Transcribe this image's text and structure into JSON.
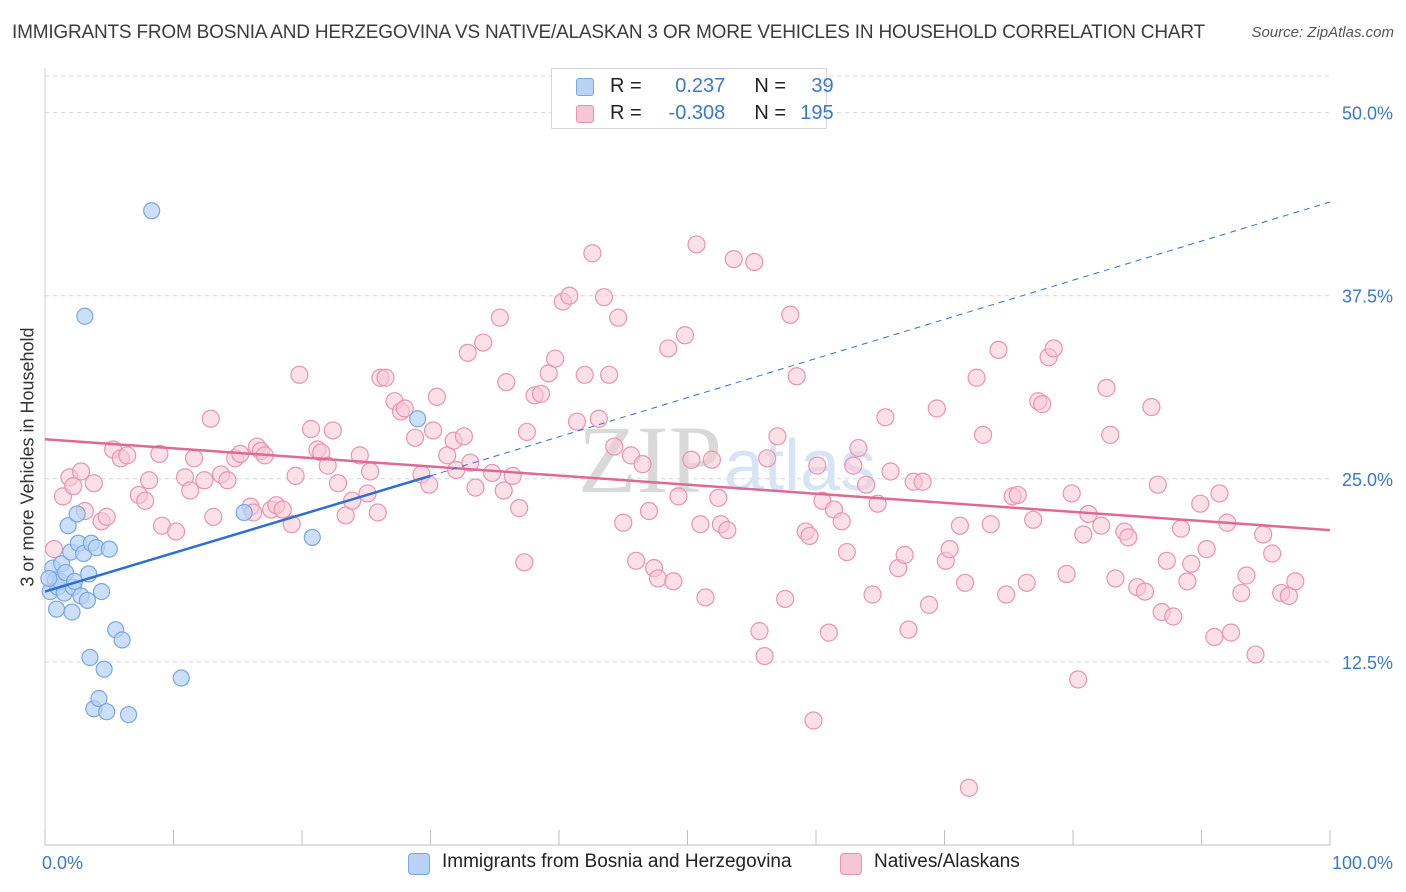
{
  "title": "IMMIGRANTS FROM BOSNIA AND HERZEGOVINA VS NATIVE/ALASKAN 3 OR MORE VEHICLES IN HOUSEHOLD CORRELATION CHART",
  "source": "Source: ZipAtlas.com",
  "watermark": {
    "zip": "ZIP",
    "atlas": "atlas"
  },
  "colors": {
    "blue_fill": "#b7d2f5",
    "blue_stroke": "#7aa7e0",
    "blue_line": "#2f6fd1",
    "pink_fill": "#f7c6d6",
    "pink_stroke": "#e894b0",
    "pink_line": "#e06895",
    "axis_label": "#3a78c9",
    "grid": "#d5d5d5"
  },
  "legend": {
    "r_label": "R =",
    "n_label": "N =",
    "rows": [
      {
        "series": "blue",
        "r": "0.237",
        "n": "39"
      },
      {
        "series": "pink",
        "r": "-0.308",
        "n": "195"
      }
    ]
  },
  "chart_data": {
    "type": "scatter",
    "title": "IMMIGRANTS FROM BOSNIA AND HERZEGOVINA VS NATIVE/ALASKAN 3 OR MORE VEHICLES IN HOUSEHOLD CORRELATION CHART",
    "xlabel": "",
    "ylabel": "3 or more Vehicles in Household",
    "xlim": [
      0,
      100
    ],
    "ylim": [
      0,
      52.5
    ],
    "x_tick_labels": [
      "0.0%",
      "100.0%"
    ],
    "y_ticks": [
      12.5,
      25.0,
      37.5,
      50.0
    ],
    "y_tick_labels": [
      "12.5%",
      "25.0%",
      "37.5%",
      "50.0%"
    ],
    "grid": true,
    "series": [
      {
        "name": "Immigrants from Bosnia and Herzegovina",
        "color": "blue",
        "r": 0.237,
        "n": 39,
        "trend": {
          "x0": 0,
          "y0": 17.3,
          "x1": 30,
          "y1": 25.2,
          "extend_to_x": 100,
          "extend_to_y": 43.9
        },
        "points": [
          [
            0.4,
            17.3
          ],
          [
            0.6,
            18.9
          ],
          [
            0.8,
            18.1
          ],
          [
            0.9,
            16.1
          ],
          [
            1.0,
            17.6
          ],
          [
            1.2,
            18.0
          ],
          [
            1.3,
            19.2
          ],
          [
            1.5,
            17.2
          ],
          [
            1.6,
            18.6
          ],
          [
            1.8,
            21.8
          ],
          [
            2.0,
            20.0
          ],
          [
            2.1,
            15.9
          ],
          [
            2.2,
            17.6
          ],
          [
            2.3,
            18.0
          ],
          [
            2.5,
            22.6
          ],
          [
            2.6,
            20.6
          ],
          [
            2.8,
            17.0
          ],
          [
            3.0,
            19.9
          ],
          [
            3.1,
            36.1
          ],
          [
            3.3,
            16.7
          ],
          [
            3.4,
            18.5
          ],
          [
            3.5,
            12.8
          ],
          [
            3.6,
            20.6
          ],
          [
            3.8,
            9.3
          ],
          [
            4.0,
            20.3
          ],
          [
            4.2,
            10.0
          ],
          [
            4.4,
            17.3
          ],
          [
            4.6,
            12.0
          ],
          [
            4.8,
            9.1
          ],
          [
            5.0,
            20.2
          ],
          [
            5.5,
            14.7
          ],
          [
            6.0,
            14.0
          ],
          [
            6.5,
            8.9
          ],
          [
            8.3,
            43.3
          ],
          [
            10.6,
            11.4
          ],
          [
            15.5,
            22.7
          ],
          [
            20.8,
            21.0
          ],
          [
            29.0,
            29.1
          ],
          [
            0.3,
            18.2
          ]
        ]
      },
      {
        "name": "Natives/Alaskans",
        "color": "pink",
        "r": -0.308,
        "n": 195,
        "trend": {
          "x0": 0,
          "y0": 27.7,
          "x1": 100,
          "y1": 21.5
        },
        "points": [
          [
            0.7,
            20.2
          ],
          [
            1.4,
            23.8
          ],
          [
            1.9,
            25.1
          ],
          [
            2.2,
            24.5
          ],
          [
            2.8,
            25.5
          ],
          [
            3.1,
            22.8
          ],
          [
            3.8,
            24.7
          ],
          [
            4.4,
            22.1
          ],
          [
            4.8,
            22.4
          ],
          [
            5.3,
            27.0
          ],
          [
            5.9,
            26.4
          ],
          [
            6.4,
            26.6
          ],
          [
            7.3,
            23.9
          ],
          [
            7.8,
            23.5
          ],
          [
            8.1,
            24.9
          ],
          [
            8.9,
            26.7
          ],
          [
            9.1,
            21.8
          ],
          [
            10.2,
            21.4
          ],
          [
            10.9,
            25.1
          ],
          [
            11.3,
            24.2
          ],
          [
            11.6,
            26.4
          ],
          [
            12.4,
            24.9
          ],
          [
            12.9,
            29.1
          ],
          [
            13.1,
            22.4
          ],
          [
            13.7,
            25.3
          ],
          [
            14.2,
            24.9
          ],
          [
            14.8,
            26.4
          ],
          [
            15.2,
            26.7
          ],
          [
            16.0,
            23.1
          ],
          [
            16.2,
            22.7
          ],
          [
            16.5,
            27.2
          ],
          [
            16.8,
            26.9
          ],
          [
            17.1,
            26.6
          ],
          [
            17.6,
            22.9
          ],
          [
            18.0,
            23.2
          ],
          [
            18.5,
            22.9
          ],
          [
            19.2,
            21.9
          ],
          [
            19.5,
            25.2
          ],
          [
            19.8,
            32.1
          ],
          [
            20.7,
            28.4
          ],
          [
            21.2,
            27.0
          ],
          [
            21.5,
            26.8
          ],
          [
            22.0,
            25.9
          ],
          [
            22.4,
            28.3
          ],
          [
            22.8,
            24.7
          ],
          [
            23.4,
            22.5
          ],
          [
            23.9,
            23.5
          ],
          [
            24.5,
            26.6
          ],
          [
            25.1,
            24.0
          ],
          [
            25.3,
            25.5
          ],
          [
            25.9,
            22.7
          ],
          [
            26.1,
            31.9
          ],
          [
            26.5,
            31.9
          ],
          [
            27.2,
            30.3
          ],
          [
            27.7,
            29.6
          ],
          [
            28.0,
            29.8
          ],
          [
            28.8,
            27.8
          ],
          [
            29.3,
            25.3
          ],
          [
            29.9,
            24.6
          ],
          [
            30.2,
            28.3
          ],
          [
            30.5,
            30.6
          ],
          [
            31.3,
            26.6
          ],
          [
            31.8,
            27.6
          ],
          [
            32.0,
            25.6
          ],
          [
            32.6,
            27.9
          ],
          [
            32.9,
            33.6
          ],
          [
            33.1,
            26.1
          ],
          [
            33.5,
            24.4
          ],
          [
            34.1,
            34.3
          ],
          [
            34.8,
            25.4
          ],
          [
            35.4,
            36.0
          ],
          [
            35.7,
            24.2
          ],
          [
            35.9,
            31.6
          ],
          [
            36.4,
            25.2
          ],
          [
            36.9,
            23.0
          ],
          [
            37.3,
            19.3
          ],
          [
            37.5,
            28.2
          ],
          [
            38.1,
            30.7
          ],
          [
            38.6,
            30.8
          ],
          [
            39.2,
            32.2
          ],
          [
            39.7,
            33.2
          ],
          [
            40.3,
            37.1
          ],
          [
            40.8,
            37.5
          ],
          [
            41.4,
            28.9
          ],
          [
            42.0,
            32.1
          ],
          [
            42.6,
            40.4
          ],
          [
            43.1,
            29.1
          ],
          [
            43.5,
            37.4
          ],
          [
            43.9,
            32.1
          ],
          [
            44.3,
            27.2
          ],
          [
            44.6,
            36.0
          ],
          [
            45.0,
            22.0
          ],
          [
            45.6,
            26.6
          ],
          [
            46.0,
            19.4
          ],
          [
            46.5,
            26.0
          ],
          [
            47.0,
            22.8
          ],
          [
            47.4,
            18.9
          ],
          [
            47.7,
            18.2
          ],
          [
            48.5,
            33.9
          ],
          [
            48.9,
            18.0
          ],
          [
            49.3,
            23.8
          ],
          [
            49.8,
            34.8
          ],
          [
            50.3,
            26.3
          ],
          [
            50.7,
            41.0
          ],
          [
            51.0,
            21.9
          ],
          [
            51.4,
            16.9
          ],
          [
            51.9,
            26.3
          ],
          [
            52.4,
            23.7
          ],
          [
            52.6,
            21.9
          ],
          [
            53.1,
            21.5
          ],
          [
            53.6,
            40.0
          ],
          [
            55.2,
            39.8
          ],
          [
            55.6,
            14.6
          ],
          [
            56.0,
            12.9
          ],
          [
            56.2,
            26.4
          ],
          [
            57.0,
            27.9
          ],
          [
            57.6,
            16.8
          ],
          [
            58.0,
            36.2
          ],
          [
            58.5,
            32.0
          ],
          [
            59.2,
            21.4
          ],
          [
            59.5,
            21.1
          ],
          [
            59.8,
            8.5
          ],
          [
            60.1,
            25.9
          ],
          [
            60.5,
            23.5
          ],
          [
            61.0,
            14.5
          ],
          [
            61.4,
            22.9
          ],
          [
            62.0,
            22.1
          ],
          [
            62.4,
            20.0
          ],
          [
            62.9,
            25.9
          ],
          [
            63.3,
            27.1
          ],
          [
            63.9,
            24.6
          ],
          [
            64.4,
            17.1
          ],
          [
            64.8,
            23.3
          ],
          [
            65.4,
            29.2
          ],
          [
            65.8,
            25.5
          ],
          [
            66.4,
            18.9
          ],
          [
            66.9,
            19.8
          ],
          [
            67.2,
            14.7
          ],
          [
            67.6,
            24.8
          ],
          [
            68.3,
            24.8
          ],
          [
            68.8,
            16.4
          ],
          [
            69.4,
            29.8
          ],
          [
            70.1,
            19.4
          ],
          [
            70.4,
            20.2
          ],
          [
            71.2,
            21.8
          ],
          [
            71.6,
            17.9
          ],
          [
            71.9,
            3.9
          ],
          [
            72.5,
            31.9
          ],
          [
            73.0,
            28.0
          ],
          [
            73.6,
            21.9
          ],
          [
            74.2,
            33.8
          ],
          [
            74.8,
            17.1
          ],
          [
            75.3,
            23.8
          ],
          [
            75.7,
            23.9
          ],
          [
            76.4,
            17.9
          ],
          [
            76.9,
            22.2
          ],
          [
            77.3,
            30.3
          ],
          [
            77.6,
            30.1
          ],
          [
            78.1,
            33.3
          ],
          [
            78.5,
            33.9
          ],
          [
            79.5,
            18.5
          ],
          [
            79.9,
            24.0
          ],
          [
            80.4,
            11.3
          ],
          [
            80.8,
            21.2
          ],
          [
            81.2,
            22.6
          ],
          [
            82.2,
            21.8
          ],
          [
            82.6,
            31.2
          ],
          [
            82.9,
            28.0
          ],
          [
            83.3,
            18.2
          ],
          [
            84.0,
            21.4
          ],
          [
            84.3,
            21.0
          ],
          [
            85.0,
            17.6
          ],
          [
            85.6,
            17.3
          ],
          [
            86.1,
            29.9
          ],
          [
            86.6,
            24.6
          ],
          [
            86.9,
            15.9
          ],
          [
            87.3,
            19.4
          ],
          [
            87.8,
            15.6
          ],
          [
            88.4,
            21.6
          ],
          [
            88.9,
            18.0
          ],
          [
            89.2,
            19.2
          ],
          [
            89.9,
            23.3
          ],
          [
            90.4,
            20.2
          ],
          [
            91.0,
            14.2
          ],
          [
            91.4,
            24.0
          ],
          [
            92.0,
            22.0
          ],
          [
            92.3,
            14.5
          ],
          [
            93.1,
            17.2
          ],
          [
            93.5,
            18.4
          ],
          [
            94.2,
            13.0
          ],
          [
            94.8,
            21.2
          ],
          [
            95.5,
            19.9
          ],
          [
            96.2,
            17.2
          ],
          [
            96.8,
            17.0
          ],
          [
            97.3,
            18.0
          ]
        ]
      }
    ]
  }
}
